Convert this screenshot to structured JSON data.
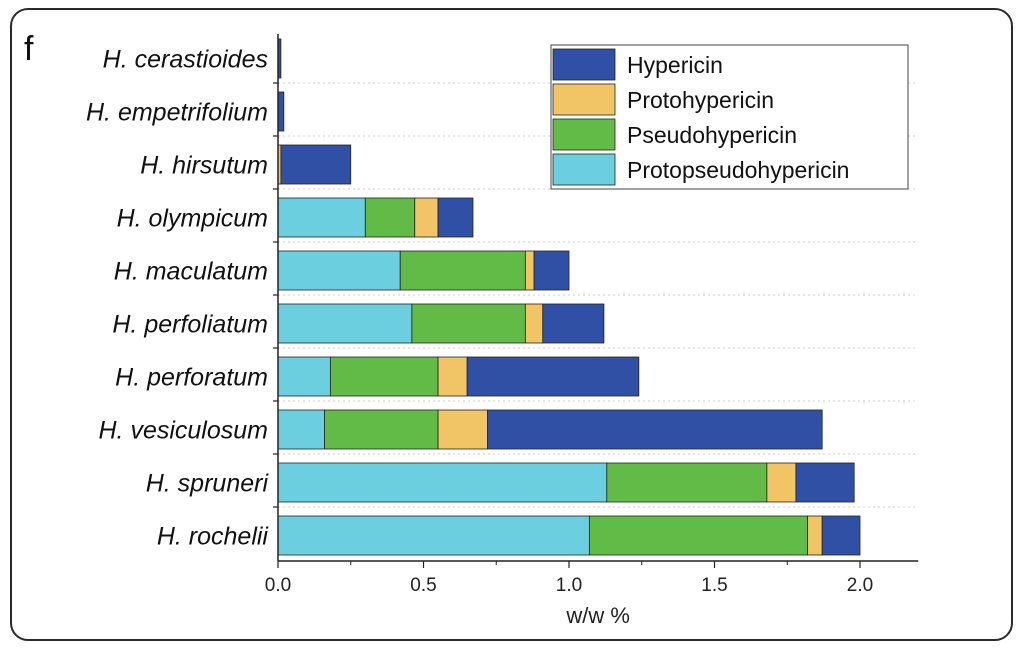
{
  "panel_label": "f",
  "chart_data": {
    "type": "bar",
    "orientation": "horizontal",
    "stacked": true,
    "categories": [
      "H. cerastioides",
      "H. empetrifolium",
      "H. hirsutum",
      "H. olympicum",
      "H. maculatum",
      "H. perfoliatum",
      "H. perforatum",
      "H. vesiculosum",
      "H. spruneri",
      "H. rochelii"
    ],
    "series": [
      {
        "name": "Protopseudohypericin",
        "color": "#6bcfdf",
        "values": [
          0.0,
          0.0,
          0.0,
          0.3,
          0.42,
          0.46,
          0.18,
          0.16,
          1.13,
          1.07
        ]
      },
      {
        "name": "Pseudohypericin",
        "color": "#62bb46",
        "values": [
          0.0,
          0.0,
          0.0,
          0.17,
          0.43,
          0.39,
          0.37,
          0.39,
          0.55,
          0.75
        ]
      },
      {
        "name": "Protohypericin",
        "color": "#f1c566",
        "values": [
          0.0,
          0.0,
          0.01,
          0.08,
          0.03,
          0.06,
          0.1,
          0.17,
          0.1,
          0.05
        ]
      },
      {
        "name": "Hypericin",
        "color": "#3050a6",
        "values": [
          0.01,
          0.02,
          0.24,
          0.12,
          0.12,
          0.21,
          0.59,
          1.15,
          0.2,
          0.13
        ]
      }
    ],
    "legend_order": [
      "Hypericin",
      "Protohypericin",
      "Pseudohypericin",
      "Protopseudohypericin"
    ],
    "xlabel": "w/w %",
    "xticks": [
      "0.0",
      "0.5",
      "1.0",
      "1.5",
      "2.0"
    ],
    "xlim": [
      0,
      2.2
    ],
    "grid": "dotted horizontal",
    "legend_position": "top-right"
  }
}
